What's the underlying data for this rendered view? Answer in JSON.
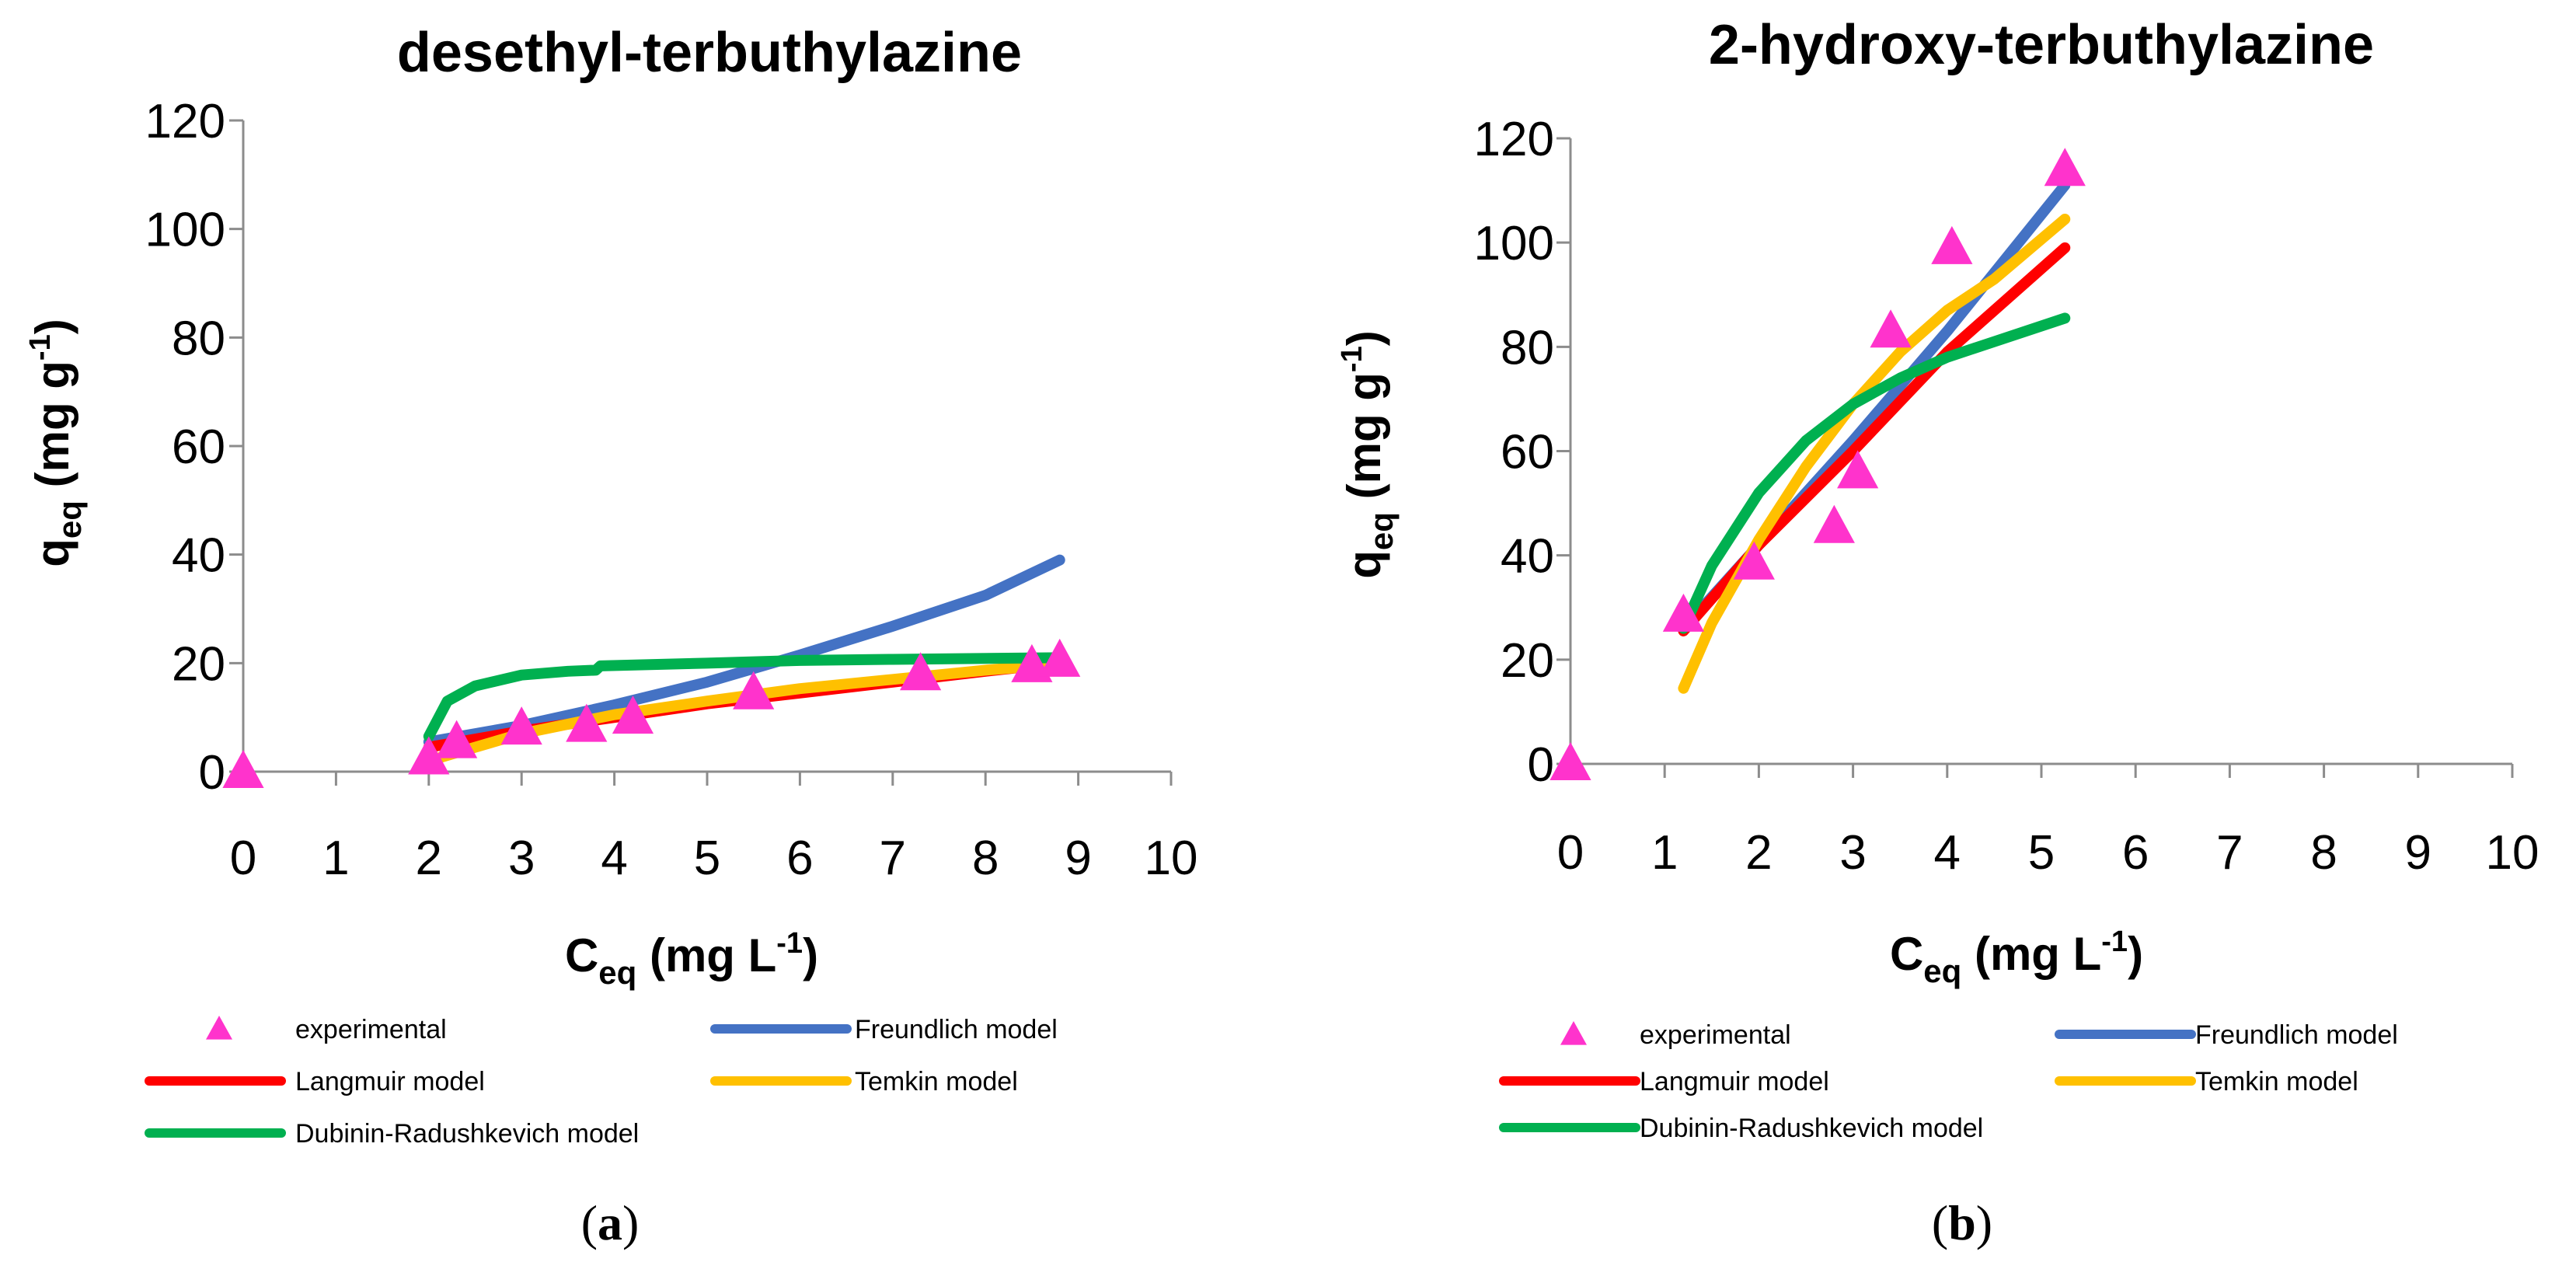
{
  "panels": [
    {
      "caption": {
        "open": "(",
        "letter": "a",
        "close": ")"
      },
      "chart_data": {
        "type": "scatter",
        "title": "desethyl-terbuthylazine",
        "xlabel": {
          "main": "C",
          "sub": "eq",
          "unit": " (mg L",
          "sup": "-1",
          "close": ")"
        },
        "ylabel": {
          "main": "q",
          "sub": "eq",
          "unit": " (mg g",
          "sup": "-1",
          "close": ")"
        },
        "xlim": [
          0,
          10
        ],
        "ylim": [
          0,
          120
        ],
        "x_ticks": [
          "0",
          "1",
          "2",
          "3",
          "4",
          "5",
          "6",
          "7",
          "8",
          "9",
          "10"
        ],
        "y_ticks": [
          "0",
          "20",
          "40",
          "60",
          "80",
          "100",
          "120"
        ],
        "grid": false,
        "legend": "bottom",
        "series": [
          {
            "name": "experimental",
            "kind": "marker",
            "color": "#ff33cc",
            "points": [
              [
                0,
                0
              ],
              [
                2.0,
                2.5
              ],
              [
                2.3,
                5.5
              ],
              [
                3.0,
                8.0
              ],
              [
                3.7,
                8.5
              ],
              [
                4.2,
                10.0
              ],
              [
                5.5,
                14.5
              ],
              [
                7.3,
                18.0
              ],
              [
                8.5,
                19.5
              ],
              [
                8.8,
                20.5
              ]
            ]
          },
          {
            "name": "Freundlich model",
            "kind": "line",
            "color": "#4472c4",
            "points": [
              [
                2.0,
                5.5
              ],
              [
                3.0,
                8.5
              ],
              [
                4.0,
                12.3
              ],
              [
                5.0,
                16.5
              ],
              [
                6.0,
                21.5
              ],
              [
                7.0,
                26.8
              ],
              [
                8.0,
                32.5
              ],
              [
                8.8,
                39.0
              ]
            ]
          },
          {
            "name": "Langmuir model",
            "kind": "line",
            "color": "#ff0000",
            "points": [
              [
                2.0,
                4.5
              ],
              [
                3.0,
                7.5
              ],
              [
                4.0,
                10.0
              ],
              [
                5.0,
                12.5
              ],
              [
                6.0,
                14.5
              ],
              [
                7.0,
                16.5
              ],
              [
                8.0,
                18.5
              ],
              [
                8.8,
                20.0
              ]
            ]
          },
          {
            "name": "Temkin model",
            "kind": "line",
            "color": "#ffc000",
            "points": [
              [
                2.0,
                2.0
              ],
              [
                3.0,
                7.0
              ],
              [
                4.0,
                10.5
              ],
              [
                5.0,
                13.0
              ],
              [
                6.0,
                15.3
              ],
              [
                7.0,
                17.0
              ],
              [
                8.0,
                18.7
              ],
              [
                8.8,
                19.8
              ]
            ]
          },
          {
            "name": "Dubinin-Radushkevich model",
            "kind": "line",
            "color": "#00b050",
            "points": [
              [
                2.0,
                6.5
              ],
              [
                2.2,
                13.0
              ],
              [
                2.5,
                15.8
              ],
              [
                3.0,
                17.8
              ],
              [
                3.5,
                18.5
              ],
              [
                3.8,
                18.7
              ],
              [
                3.85,
                19.5
              ],
              [
                5.0,
                20.0
              ],
              [
                6.0,
                20.5
              ],
              [
                7.0,
                20.7
              ],
              [
                8.8,
                21.0
              ]
            ]
          }
        ]
      }
    },
    {
      "caption": {
        "open": "(",
        "letter": "b",
        "close": ")"
      },
      "chart_data": {
        "type": "scatter",
        "title": "2-hydroxy-terbuthylazine",
        "xlabel": {
          "main": "C",
          "sub": "eq",
          "unit": " (mg L",
          "sup": "-1",
          "close": ")"
        },
        "ylabel": {
          "main": "q",
          "sub": "eq",
          "unit": " (mg g",
          "sup": "-1",
          "close": ")"
        },
        "xlim": [
          0,
          10
        ],
        "ylim": [
          0,
          120
        ],
        "x_ticks": [
          "0",
          "1",
          "2",
          "3",
          "4",
          "5",
          "6",
          "7",
          "8",
          "9",
          "10"
        ],
        "y_ticks": [
          "0",
          "20",
          "40",
          "60",
          "80",
          "100",
          "120"
        ],
        "grid": false,
        "legend": "bottom",
        "series": [
          {
            "name": "experimental",
            "kind": "marker",
            "color": "#ff33cc",
            "points": [
              [
                0,
                0
              ],
              [
                1.2,
                28.5
              ],
              [
                1.95,
                38.5
              ],
              [
                2.8,
                45.5
              ],
              [
                3.05,
                56.0
              ],
              [
                3.4,
                83.0
              ],
              [
                4.05,
                99.0
              ],
              [
                5.25,
                114.0
              ]
            ]
          },
          {
            "name": "Freundlich model",
            "kind": "line",
            "color": "#4472c4",
            "points": [
              [
                1.2,
                26.0
              ],
              [
                2.0,
                42.0
              ],
              [
                3.0,
                62.0
              ],
              [
                4.0,
                83.0
              ],
              [
                5.25,
                111.0
              ]
            ]
          },
          {
            "name": "Langmuir model",
            "kind": "line",
            "color": "#ff0000",
            "points": [
              [
                1.2,
                25.5
              ],
              [
                2.0,
                42.0
              ],
              [
                3.0,
                60.0
              ],
              [
                4.0,
                79.0
              ],
              [
                5.25,
                99.0
              ]
            ]
          },
          {
            "name": "Temkin model",
            "kind": "line",
            "color": "#ffc000",
            "points": [
              [
                1.2,
                14.5
              ],
              [
                1.5,
                27.0
              ],
              [
                2.0,
                43.0
              ],
              [
                2.5,
                57.0
              ],
              [
                3.0,
                69.0
              ],
              [
                3.5,
                79.0
              ],
              [
                4.0,
                87.0
              ],
              [
                4.5,
                93.0
              ],
              [
                5.25,
                104.5
              ]
            ]
          },
          {
            "name": "Dubinin-Radushkevich model",
            "kind": "line",
            "color": "#00b050",
            "points": [
              [
                1.2,
                26.0
              ],
              [
                1.5,
                38.0
              ],
              [
                2.0,
                52.0
              ],
              [
                2.5,
                62.0
              ],
              [
                3.0,
                69.0
              ],
              [
                3.5,
                74.0
              ],
              [
                4.0,
                78.0
              ],
              [
                4.5,
                81.0
              ],
              [
                5.25,
                85.5
              ]
            ]
          }
        ]
      }
    }
  ]
}
